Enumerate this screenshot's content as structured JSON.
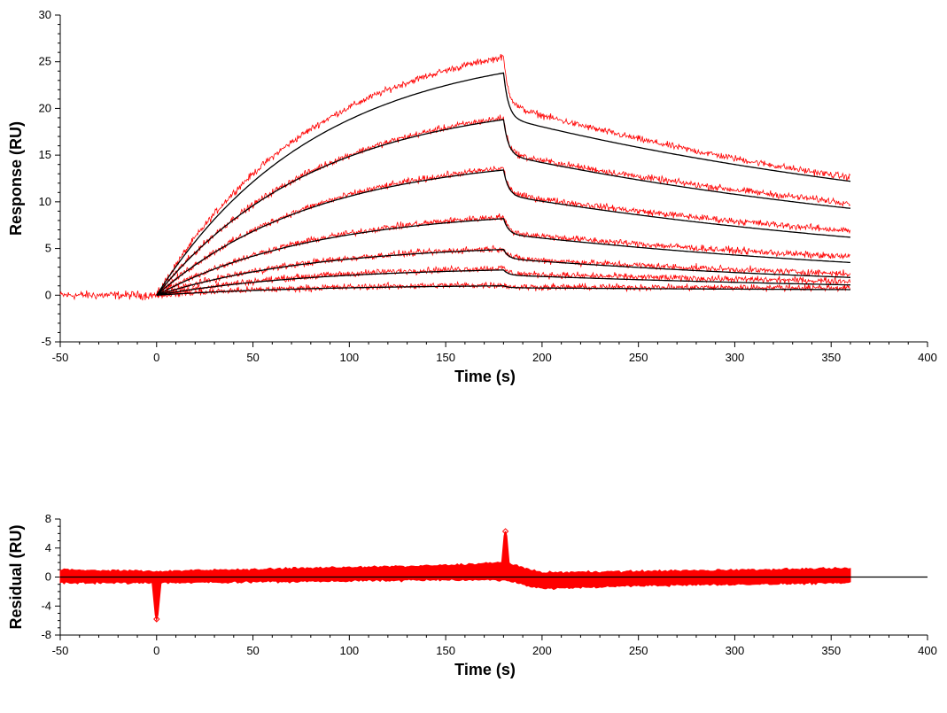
{
  "colors": {
    "data": "#ff0000",
    "fit": "#000000",
    "axis": "#000000",
    "background": "#ffffff"
  },
  "chart_data": [
    {
      "type": "line",
      "title": "",
      "xlabel": "Time (s)",
      "ylabel": "Response (RU)",
      "xlim": [
        -50,
        400
      ],
      "ylim": [
        -5,
        30
      ],
      "xticks": [
        -50,
        0,
        50,
        100,
        150,
        200,
        250,
        300,
        350,
        400
      ],
      "yticks": [
        -5,
        0,
        5,
        10,
        15,
        20,
        25,
        30
      ],
      "xtick_labels": [
        "-50",
        "0",
        "50",
        "100",
        "150",
        "200",
        "250",
        "300",
        "350",
        "400"
      ],
      "ytick_labels": [
        "-5",
        "0",
        "5",
        "10",
        "15",
        "20",
        "25",
        "30"
      ],
      "grid": false,
      "legend": "none",
      "injection_start": 0,
      "injection_end": 180,
      "data_end": 360,
      "series": [
        {
          "x": [
            -50,
            0,
            180,
            360
          ],
          "y_fit": [
            0,
            0,
            23.8,
            12.2
          ],
          "y_data": [
            0,
            0,
            25.5,
            12.6
          ]
        },
        {
          "x": [
            -50,
            0,
            180,
            360
          ],
          "y_fit": [
            0,
            0,
            18.8,
            9.3
          ],
          "y_data": [
            0,
            0,
            19.0,
            9.9
          ]
        },
        {
          "x": [
            -50,
            0,
            180,
            360
          ],
          "y_fit": [
            0,
            0,
            13.4,
            6.2
          ],
          "y_data": [
            0,
            0,
            13.6,
            6.9
          ]
        },
        {
          "x": [
            -50,
            0,
            180,
            360
          ],
          "y_fit": [
            0,
            0,
            8.2,
            3.5
          ],
          "y_data": [
            0,
            0,
            8.4,
            4.1
          ]
        },
        {
          "x": [
            -50,
            0,
            180,
            360
          ],
          "y_fit": [
            0,
            0,
            4.9,
            1.9
          ],
          "y_data": [
            0,
            0,
            5.0,
            2.3
          ]
        },
        {
          "x": [
            -50,
            0,
            180,
            360
          ],
          "y_fit": [
            0,
            0,
            2.7,
            1.1
          ],
          "y_data": [
            0,
            0,
            2.9,
            1.5
          ]
        },
        {
          "x": [
            -50,
            0,
            180,
            360
          ],
          "y_fit": [
            0,
            0,
            1.0,
            0.6
          ],
          "y_data": [
            0,
            0,
            1.1,
            0.8
          ]
        }
      ]
    },
    {
      "type": "scatter",
      "title": "",
      "xlabel": "Time (s)",
      "ylabel": "Residual (RU)",
      "xlim": [
        -50,
        400
      ],
      "ylim": [
        -8,
        8
      ],
      "xticks": [
        -50,
        0,
        50,
        100,
        150,
        200,
        250,
        300,
        350,
        400
      ],
      "yticks": [
        -8,
        -4,
        0,
        4,
        8
      ],
      "xtick_labels": [
        "-50",
        "0",
        "50",
        "100",
        "150",
        "200",
        "250",
        "300",
        "350",
        "400"
      ],
      "ytick_labels": [
        "-8",
        "-4",
        "0",
        "4",
        "8"
      ],
      "grid": false,
      "legend": "none",
      "zero_line": 0,
      "band": {
        "x": [
          -50,
          0,
          150,
          180,
          200,
          250,
          360
        ],
        "upper": [
          1.0,
          0.8,
          1.6,
          2.0,
          0.6,
          0.8,
          1.2
        ],
        "lower": [
          -0.8,
          -0.8,
          -0.4,
          -0.4,
          -1.6,
          -1.2,
          -0.8
        ]
      },
      "spikes": [
        {
          "x": 0,
          "y": -5.8
        },
        {
          "x": 181,
          "y": 6.3
        }
      ]
    }
  ]
}
